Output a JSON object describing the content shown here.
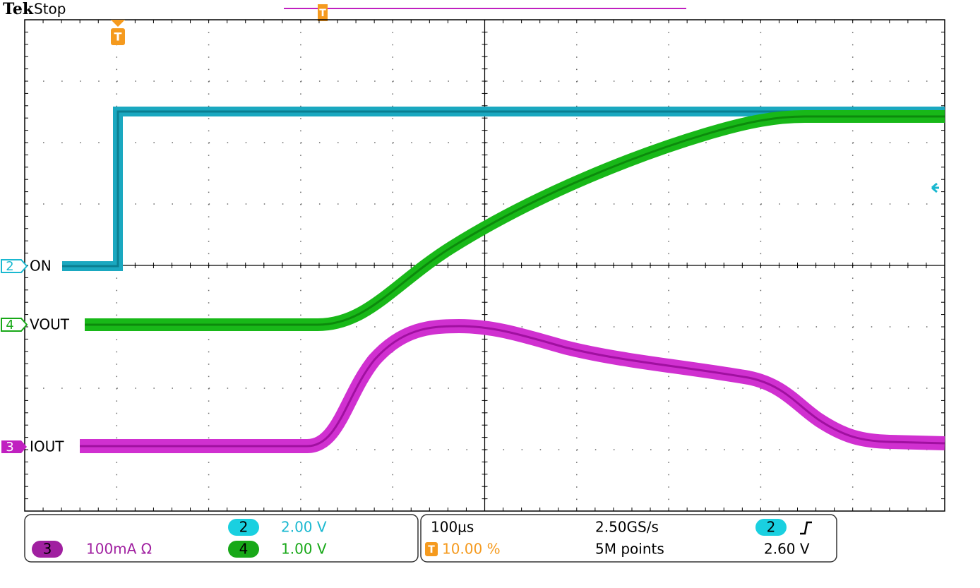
{
  "header": {
    "brand": "Tek",
    "status": "Stop"
  },
  "trigger_marker": "T",
  "channels": [
    {
      "number": "2",
      "label": "ON"
    },
    {
      "number": "4",
      "label": "VOUT"
    },
    {
      "number": "3",
      "label": "IOUT"
    }
  ],
  "readout": {
    "scales": [
      {
        "channel": "2",
        "scale": "2.00 V"
      },
      {
        "channel": "4",
        "scale": "1.00 V"
      },
      {
        "channel": "3",
        "scale": "100mA Ω"
      }
    ],
    "timebase": "100µs",
    "trigger_position": "10.00 %",
    "sample_rate": "2.50GS/s",
    "record_length": "5M points",
    "trigger_source": "2",
    "trigger_level": "2.60 V"
  }
}
